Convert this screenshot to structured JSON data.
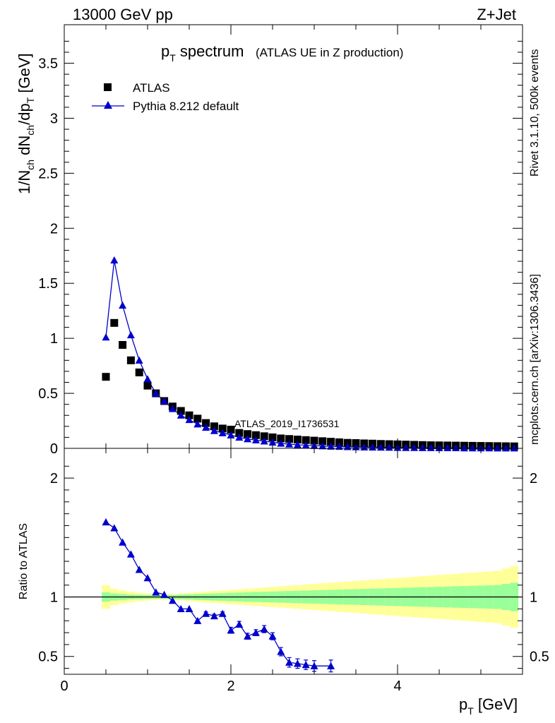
{
  "header": {
    "energy": "13000 GeV pp",
    "process": "Z+Jet"
  },
  "side": {
    "rivet": "Rivet 3.1.10,  500k events",
    "mcplots": "mcplots.cern.ch [arXiv:1306.3436]"
  },
  "chart_data": {
    "type": "scatter",
    "title_main": "p",
    "title_sub": "T",
    "title_rest": " spectrum",
    "subtitle": "(ATLAS UE in Z production)",
    "analysis_id": "ATLAS_2019_I1736531",
    "xlabel": "p",
    "xlabel_sub": "T",
    "xlabel_unit": " [GeV]",
    "ylabel_parts": [
      "1/N",
      "ch",
      " dN",
      "ch",
      "/dp",
      "T",
      " [GeV]"
    ],
    "ratio_ylabel": "Ratio to ATLAS",
    "xlim": [
      0,
      5.5
    ],
    "ylim": [
      0,
      3.85
    ],
    "ratio_ylim": [
      0.35,
      2.25
    ],
    "x_ticks": [
      "0",
      "2",
      "4"
    ],
    "x_tick_values": [
      0,
      2,
      4
    ],
    "y_ticks": [
      "0",
      "0.5",
      "1",
      "1.5",
      "2",
      "2.5",
      "3",
      "3.5"
    ],
    "y_tick_values": [
      0,
      0.5,
      1,
      1.5,
      2,
      2.5,
      3,
      3.5
    ],
    "ratio_ticks": [
      "0.5",
      "1",
      "2"
    ],
    "ratio_tick_values": [
      0.5,
      1,
      2
    ],
    "legend": [
      {
        "name": "ATLAS",
        "marker": "square",
        "color": "#000000"
      },
      {
        "name": "Pythia 8.212 default",
        "marker": "triangle",
        "color": "#0000cc"
      }
    ],
    "x": [
      0.5,
      0.6,
      0.7,
      0.8,
      0.9,
      1.0,
      1.1,
      1.2,
      1.3,
      1.4,
      1.5,
      1.6,
      1.7,
      1.8,
      1.9,
      2.0,
      2.1,
      2.2,
      2.3,
      2.4,
      2.5,
      2.6,
      2.7,
      2.8,
      2.9,
      3.0,
      3.1,
      3.2,
      3.3,
      3.4,
      3.5,
      3.6,
      3.7,
      3.8,
      3.9,
      4.0,
      4.1,
      4.2,
      4.3,
      4.4,
      4.5,
      4.6,
      4.7,
      4.8,
      4.9,
      5.0,
      5.1,
      5.2,
      5.3,
      5.4
    ],
    "series": [
      {
        "name": "ATLAS",
        "values": [
          0.65,
          1.14,
          0.94,
          0.8,
          0.69,
          0.57,
          0.5,
          0.43,
          0.38,
          0.34,
          0.3,
          0.27,
          0.23,
          0.2,
          0.18,
          0.17,
          0.14,
          0.13,
          0.12,
          0.11,
          0.1,
          0.09,
          0.085,
          0.08,
          0.075,
          0.07,
          0.065,
          0.06,
          0.055,
          0.05,
          0.048,
          0.045,
          0.043,
          0.04,
          0.038,
          0.036,
          0.034,
          0.032,
          0.03,
          0.028,
          0.027,
          0.026,
          0.025,
          0.024,
          0.023,
          0.022,
          0.021,
          0.02,
          0.019,
          0.018
        ]
      },
      {
        "name": "Pythia 8.212 default",
        "values": [
          1.01,
          1.71,
          1.3,
          1.03,
          0.8,
          0.63,
          0.5,
          0.43,
          0.36,
          0.3,
          0.26,
          0.22,
          0.19,
          0.16,
          0.14,
          0.12,
          0.1,
          0.085,
          0.075,
          0.065,
          0.055,
          0.045,
          0.038,
          0.033,
          0.028,
          0.024,
          0.021,
          0.018,
          0.016,
          0.014,
          0.012,
          0.011,
          0.01,
          0.009,
          0.008,
          0.007,
          0.006,
          0.006,
          0.005,
          0.005,
          0.004,
          0.004,
          0.004,
          0.003,
          0.003,
          0.003,
          0.003,
          0.002,
          0.002,
          0.002
        ]
      }
    ],
    "ratio": {
      "x": [
        0.5,
        0.6,
        0.7,
        0.8,
        0.9,
        1.0,
        1.1,
        1.2,
        1.3,
        1.4,
        1.5,
        1.6,
        1.7,
        1.8,
        1.9,
        2.0,
        2.1,
        2.2,
        2.3,
        2.4,
        2.5,
        2.6,
        2.7,
        2.8,
        2.9,
        3.0,
        3.2
      ],
      "values": [
        1.63,
        1.58,
        1.46,
        1.36,
        1.23,
        1.16,
        1.04,
        1.02,
        0.97,
        0.9,
        0.9,
        0.8,
        0.86,
        0.84,
        0.86,
        0.72,
        0.77,
        0.67,
        0.7,
        0.73,
        0.67,
        0.54,
        0.45,
        0.44,
        0.43,
        0.42,
        0.42
      ],
      "errors": [
        0,
        0,
        0,
        0,
        0,
        0,
        0,
        0,
        0,
        0,
        0,
        0,
        0.015,
        0.015,
        0.015,
        0.025,
        0.025,
        0.025,
        0.025,
        0.03,
        0.03,
        0.035,
        0.04,
        0.04,
        0.04,
        0.045,
        0.05
      ]
    },
    "bands": {
      "edges": [
        0.45,
        0.55,
        0.65,
        0.75,
        0.85,
        0.95,
        1.05,
        1.15,
        1.25,
        1.35,
        1.45,
        1.55,
        1.65,
        1.75,
        1.85,
        1.95,
        2.05,
        2.15,
        2.25,
        2.35,
        2.45,
        2.55,
        2.65,
        2.75,
        2.85,
        2.95,
        3.05,
        3.15,
        3.25,
        3.35,
        3.45,
        3.55,
        3.65,
        3.75,
        3.85,
        3.95,
        4.05,
        4.15,
        4.25,
        4.35,
        4.45,
        4.55,
        4.65,
        4.75,
        4.85,
        4.95,
        5.05,
        5.15,
        5.25,
        5.35,
        5.45
      ],
      "stat_half": [
        0.04,
        0.03,
        0.025,
        0.02,
        0.018,
        0.016,
        0.015,
        0.015,
        0.017,
        0.02,
        0.022,
        0.025,
        0.027,
        0.03,
        0.032,
        0.035,
        0.037,
        0.04,
        0.042,
        0.044,
        0.046,
        0.048,
        0.05,
        0.052,
        0.054,
        0.056,
        0.058,
        0.06,
        0.062,
        0.064,
        0.066,
        0.068,
        0.07,
        0.072,
        0.074,
        0.076,
        0.078,
        0.08,
        0.082,
        0.084,
        0.086,
        0.088,
        0.09,
        0.092,
        0.094,
        0.096,
        0.098,
        0.1,
        0.11,
        0.12
      ],
      "total_half": [
        0.1,
        0.07,
        0.055,
        0.045,
        0.035,
        0.03,
        0.025,
        0.022,
        0.025,
        0.03,
        0.035,
        0.04,
        0.045,
        0.05,
        0.055,
        0.06,
        0.065,
        0.07,
        0.075,
        0.08,
        0.085,
        0.09,
        0.095,
        0.1,
        0.105,
        0.11,
        0.115,
        0.12,
        0.125,
        0.13,
        0.135,
        0.14,
        0.145,
        0.15,
        0.155,
        0.16,
        0.165,
        0.17,
        0.175,
        0.18,
        0.185,
        0.19,
        0.195,
        0.2,
        0.205,
        0.21,
        0.215,
        0.22,
        0.24,
        0.26
      ]
    },
    "colors": {
      "data": "#000000",
      "mc": "#0000cc",
      "stat_band": "#99ff99",
      "total_band": "#ffff99",
      "watermark": "#999999"
    }
  }
}
